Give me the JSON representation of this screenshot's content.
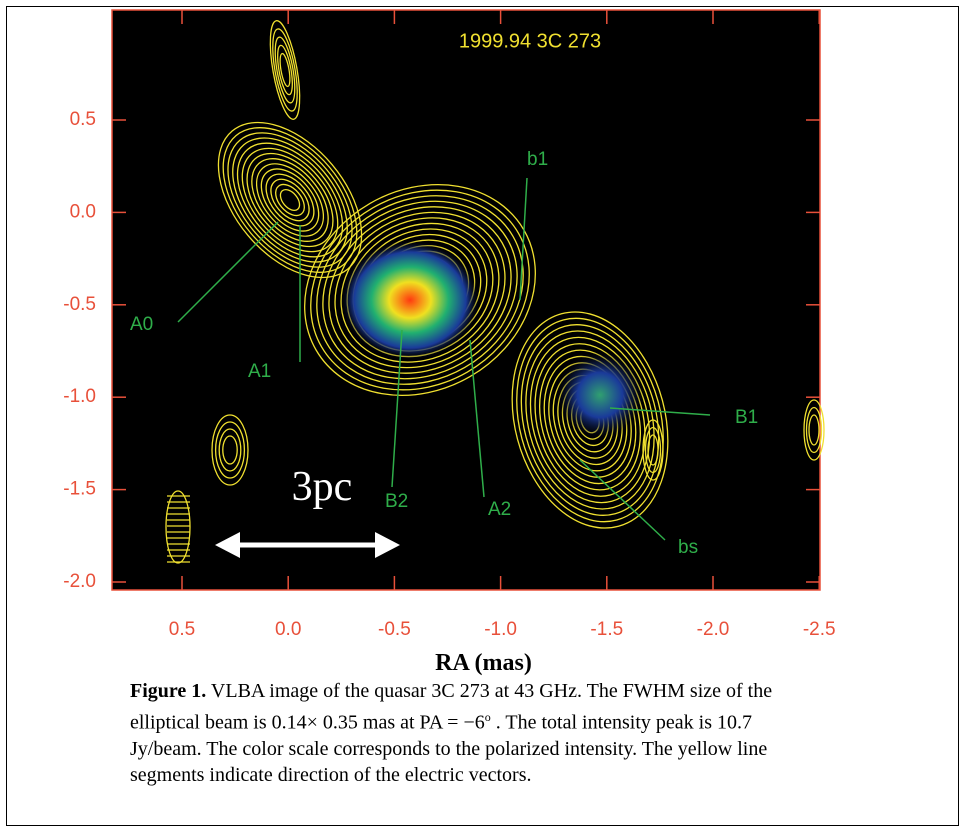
{
  "figure": {
    "title": "1999.94   3C 273",
    "y_ticks": [
      "0.5",
      "0.0",
      "-0.5",
      "-1.0",
      "-1.5",
      "-2.0"
    ],
    "x_ticks": [
      "0.5",
      "0.0",
      "-0.5",
      "-1.0",
      "-1.5",
      "-2.0",
      "-2.5"
    ],
    "components": [
      "A0",
      "A1",
      "B2",
      "A2",
      "b1",
      "B1",
      "bs"
    ],
    "scale_label": "3pc",
    "x_label": "RA (mas)"
  },
  "caption": {
    "label": "Figure 1.",
    "line1": " VLBA image of the quasar 3C 273 at 43 GHz.  The FWHM size of the",
    "line2a": "elliptical beam is 0.14× 0.35 mas at PA = −6",
    "line2sup": "o",
    "line2b": " . The total intensity peak is 10.7",
    "line3": "Jy/beam. The color scale corresponds to the polarized intensity. The yellow line",
    "line4": "segments indicate direction of the electric vectors."
  }
}
